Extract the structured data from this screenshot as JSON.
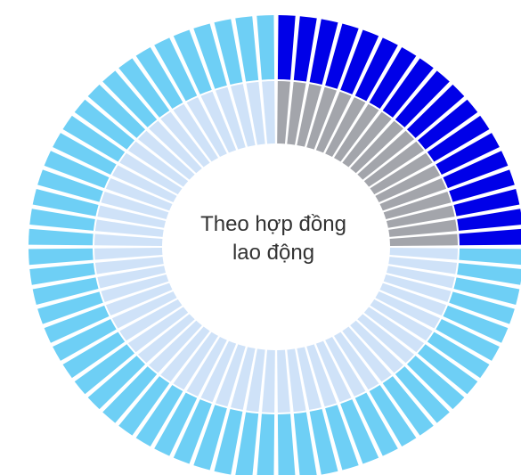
{
  "chart_data": {
    "type": "radial-bar",
    "segment_count": 72,
    "start_angle_deg": 0,
    "center_label": {
      "line1": "Theo hợp đồng",
      "line2": "lao động"
    },
    "rings": [
      {
        "ring": "inner",
        "segments": [
          {
            "count": 18,
            "color": "#a3a5ab"
          },
          {
            "count": 54,
            "color": "#cfe2f8"
          }
        ]
      },
      {
        "ring": "outer",
        "segments": [
          {
            "count": 18,
            "color": "#0000e8"
          },
          {
            "count": 54,
            "color": "#6ecff5"
          }
        ]
      }
    ]
  }
}
